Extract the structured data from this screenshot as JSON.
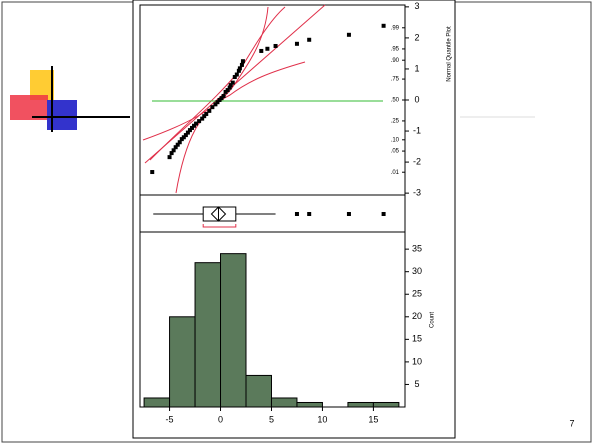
{
  "chart_data": [
    {
      "type": "scatter",
      "axis_label": "Normal Quantile Plot",
      "x": [
        -6.7,
        -5.0,
        -4.8,
        -4.6,
        -4.4,
        -4.2,
        -4.0,
        -3.8,
        -3.6,
        -3.4,
        -3.2,
        -3.0,
        -2.8,
        -2.6,
        -2.4,
        -2.1,
        -1.8,
        -1.6,
        -1.4,
        -1.1,
        -0.8,
        -0.5,
        -0.3,
        -0.1,
        0.1,
        0.3,
        0.5,
        0.7,
        0.9,
        1.0,
        1.2,
        1.4,
        1.6,
        1.8,
        1.9,
        2.1,
        2.2,
        4.0,
        4.6,
        5.4,
        7.5,
        8.7,
        12.6,
        16.0
      ],
      "y": [
        -2.32,
        -1.84,
        -1.71,
        -1.62,
        -1.52,
        -1.44,
        -1.36,
        -1.26,
        -1.2,
        -1.13,
        -1.05,
        -0.97,
        -0.9,
        -0.83,
        -0.76,
        -0.68,
        -0.6,
        -0.52,
        -0.45,
        -0.35,
        -0.23,
        -0.14,
        -0.07,
        0,
        0.06,
        0.13,
        0.26,
        0.32,
        0.4,
        0.48,
        0.56,
        0.74,
        0.82,
        0.94,
        1.02,
        1.13,
        1.25,
        1.58,
        1.65,
        1.74,
        1.81,
        1.94,
        2.1,
        2.39
      ],
      "color": "#000000",
      "xlim": [
        -7.9,
        18.1
      ],
      "ylim": [
        -3.06,
        3.06
      ],
      "yticks": [
        -3,
        -2,
        -1,
        0,
        1,
        2,
        3
      ],
      "probability_ticks": [
        {
          "value": -2.326,
          "label": ".01"
        },
        {
          "value": -1.645,
          "label": ".05"
        },
        {
          "value": -1.282,
          "label": ".10"
        },
        {
          "value": -0.674,
          "label": ".25"
        },
        {
          "value": 0,
          "label": ".50"
        },
        {
          "value": 0.674,
          "label": ".75"
        },
        {
          "value": 1.282,
          "label": ".90"
        },
        {
          "value": 1.645,
          "label": ".95"
        },
        {
          "value": 2.326,
          "label": ".99"
        }
      ]
    },
    {
      "type": "box",
      "xlim": [
        -7.9,
        18.1
      ],
      "whisker_low": -6.6,
      "q1": -1.7,
      "median": -0.2,
      "q3": 1.5,
      "whisker_high": 5.4,
      "outliers": [
        7.5,
        8.7,
        12.6,
        16.0
      ]
    },
    {
      "type": "histogram",
      "axis_label": "Count",
      "bins": [
        -7.5,
        -5,
        -2.5,
        0,
        2.5,
        5,
        7.5,
        10,
        12.5,
        15,
        17.5
      ],
      "values": [
        2,
        20,
        32,
        34,
        7,
        2,
        1,
        0,
        1,
        1
      ],
      "color": "#5b7a5b",
      "xlim": [
        -7.9,
        18.1
      ],
      "ylim": [
        0,
        38.8
      ],
      "xticks": [
        -5,
        0,
        5,
        10,
        15
      ],
      "yticks": [
        5,
        10,
        15,
        20,
        25,
        30,
        35
      ]
    }
  ],
  "page_number": "7"
}
